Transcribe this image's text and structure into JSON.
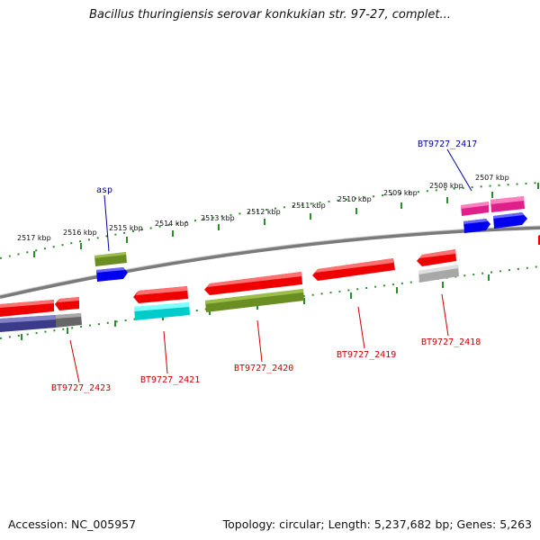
{
  "title": "Bacillus thuringiensis serovar konkukian str. 97-27, complet...",
  "footer": {
    "accession": "Accession: NC_005957",
    "stats": "Topology: circular; Length: 5,237,682 bp; Genes: 5,263"
  },
  "colors": {
    "backbone": "#808080",
    "tick": "#2e8b2e",
    "forward_label": "#0000aa",
    "reverse_label": "#cc0000"
  },
  "scale_labels": [
    "2507 kbp",
    "2508 kbp",
    "2509 kbp",
    "2510 kbp",
    "2511 kbp",
    "2512 kbp",
    "2513 kbp",
    "2514 kbp",
    "2515 kbp",
    "2516 kbp",
    "2517 kbp"
  ],
  "labels": {
    "asp": "asp",
    "bt2417": "BT9727_2417",
    "bt2418": "BT9727_2418",
    "bt2419": "BT9727_2419",
    "bt2420": "BT9727_2420",
    "bt2421": "BT9727_2421",
    "bt2423": "BT9727_2423"
  }
}
